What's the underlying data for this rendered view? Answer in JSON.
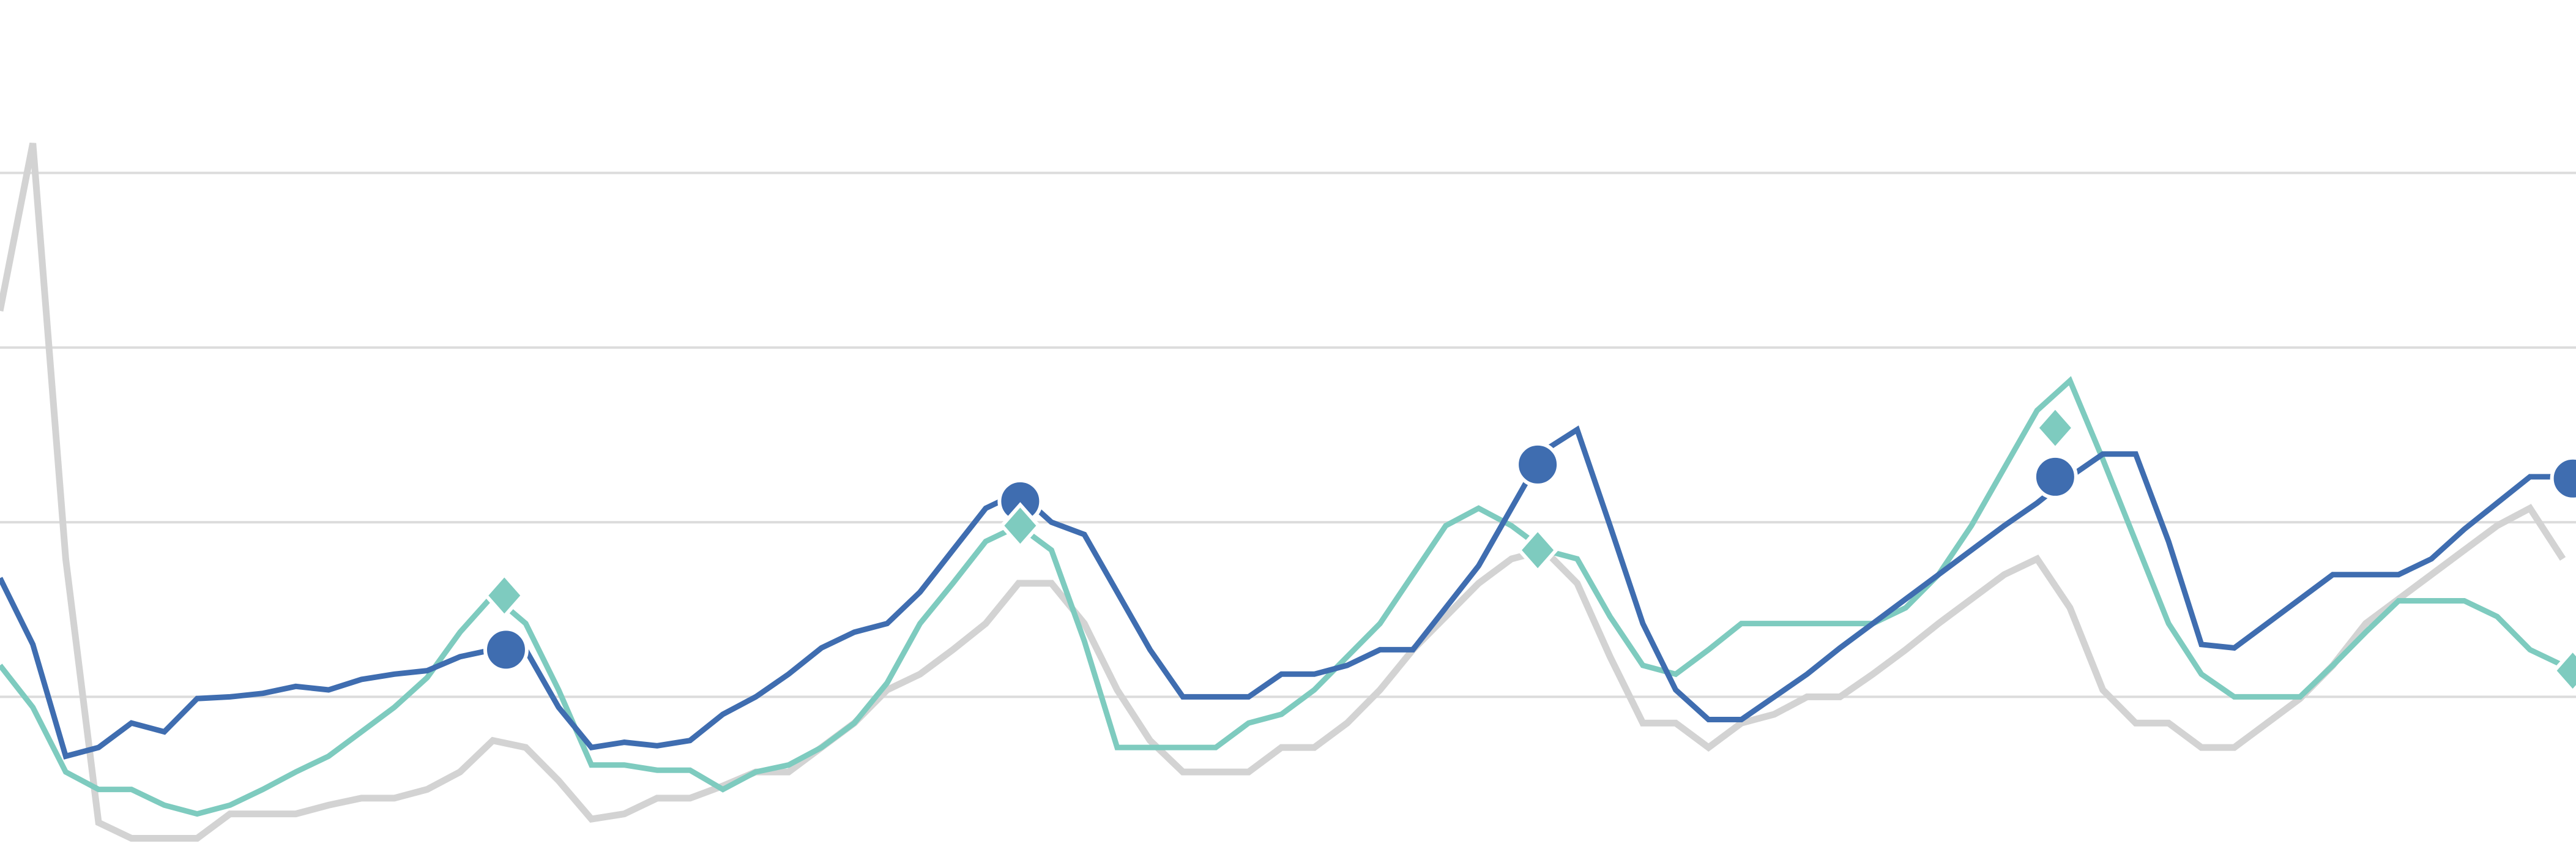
{
  "chart_data": {
    "type": "line",
    "x": [
      0,
      1,
      2,
      3,
      4,
      5,
      6,
      7,
      8,
      9,
      10,
      11,
      12,
      13,
      14,
      15,
      16,
      17,
      18,
      19,
      20,
      21,
      22,
      23,
      24,
      25,
      26,
      27,
      28,
      29,
      30,
      31,
      32,
      33,
      34,
      35,
      36,
      37,
      38,
      39,
      40,
      41,
      42,
      43,
      44,
      45,
      46,
      47,
      48,
      49,
      50,
      51,
      52,
      53,
      54,
      55,
      56,
      57,
      58,
      59,
      60,
      61,
      62,
      63,
      64,
      65,
      66,
      67,
      68,
      69,
      70,
      71,
      72,
      73,
      74,
      75,
      76,
      77,
      78
    ],
    "xlim": [
      0,
      78.4
    ],
    "ylim": [
      0.02,
      4.99
    ],
    "yticks": [
      1,
      2,
      3,
      4
    ],
    "grid": true,
    "series": [
      {
        "color": "#d3d3d3",
        "values": [
          3.21,
          4.17,
          1.79,
          0.28,
          0.19,
          0.19,
          0.19,
          0.33,
          0.33,
          0.33,
          0.38,
          0.42,
          0.42,
          0.47,
          0.57,
          0.75,
          0.71,
          0.52,
          0.3,
          0.33,
          0.42,
          0.42,
          0.49,
          0.57,
          0.57,
          0.71,
          0.85,
          1.04,
          1.13,
          1.27,
          1.42,
          1.65,
          1.65,
          1.42,
          1.04,
          0.75,
          0.57,
          0.57,
          0.57,
          0.71,
          0.71,
          0.85,
          1.04,
          1.27,
          1.46,
          1.65,
          1.79,
          1.84,
          1.65,
          1.23,
          0.85,
          0.85,
          0.71,
          0.85,
          0.9,
          1.0,
          1.0,
          1.13,
          1.27,
          1.42,
          1.56,
          1.7,
          1.79,
          1.51,
          1.04,
          0.85,
          0.85,
          0.71,
          0.71,
          0.85,
          0.99,
          1.18,
          1.42,
          1.56,
          1.7,
          1.84,
          1.98,
          2.08,
          1.79
        ]
      },
      {
        "color": "#7ecbbf",
        "values": [
          1.18,
          0.94,
          0.57,
          0.47,
          0.47,
          0.38,
          0.33,
          0.38,
          0.47,
          0.57,
          0.66,
          0.8,
          0.94,
          1.11,
          1.37,
          1.58,
          1.42,
          1.04,
          0.61,
          0.61,
          0.58,
          0.58,
          0.47,
          0.57,
          0.61,
          0.71,
          0.85,
          1.08,
          1.42,
          1.65,
          1.89,
          1.98,
          1.84,
          1.32,
          0.71,
          0.71,
          0.71,
          0.71,
          0.85,
          0.9,
          1.04,
          1.23,
          1.42,
          1.7,
          1.98,
          2.08,
          1.98,
          1.84,
          1.79,
          1.46,
          1.18,
          1.13,
          1.27,
          1.42,
          1.42,
          1.42,
          1.42,
          1.42,
          1.51,
          1.7,
          1.98,
          2.31,
          2.64,
          2.81,
          2.36,
          1.89,
          1.42,
          1.13,
          1.0,
          1.0,
          1.0,
          1.18,
          1.37,
          1.55,
          1.55,
          1.55,
          1.46,
          1.27,
          1.18
        ]
      },
      {
        "color": "#3f6db0",
        "values": [
          1.68,
          1.3,
          0.66,
          0.71,
          0.85,
          0.8,
          0.99,
          1.0,
          1.02,
          1.06,
          1.04,
          1.1,
          1.13,
          1.15,
          1.23,
          1.27,
          1.27,
          0.94,
          0.71,
          0.74,
          0.72,
          0.75,
          0.9,
          1.0,
          1.13,
          1.28,
          1.37,
          1.42,
          1.6,
          1.84,
          2.08,
          2.17,
          2.0,
          1.93,
          1.6,
          1.27,
          1.0,
          1.0,
          1.0,
          1.13,
          1.13,
          1.18,
          1.27,
          1.27,
          1.51,
          1.75,
          2.08,
          2.41,
          2.53,
          1.98,
          1.42,
          1.04,
          0.87,
          0.87,
          1.0,
          1.13,
          1.28,
          1.42,
          1.56,
          1.7,
          1.84,
          1.98,
          2.11,
          2.26,
          2.39,
          2.39,
          1.89,
          1.3,
          1.28,
          1.42,
          1.56,
          1.7,
          1.7,
          1.7,
          1.79,
          1.96,
          2.11,
          2.26,
          2.26
        ]
      }
    ],
    "markers": [
      {
        "shape": "circle",
        "color": "#3f6db0",
        "x": [
          15.4,
          31.05,
          46.8,
          62.55,
          78.3
        ],
        "values": [
          1.27,
          2.12,
          2.33,
          2.26,
          2.25
        ]
      },
      {
        "shape": "diamond",
        "color": "#7ecbbf",
        "x": [
          15.35,
          31.05,
          46.8,
          62.55,
          78.3
        ],
        "values": [
          1.58,
          1.98,
          1.84,
          2.54,
          1.15
        ]
      }
    ]
  }
}
